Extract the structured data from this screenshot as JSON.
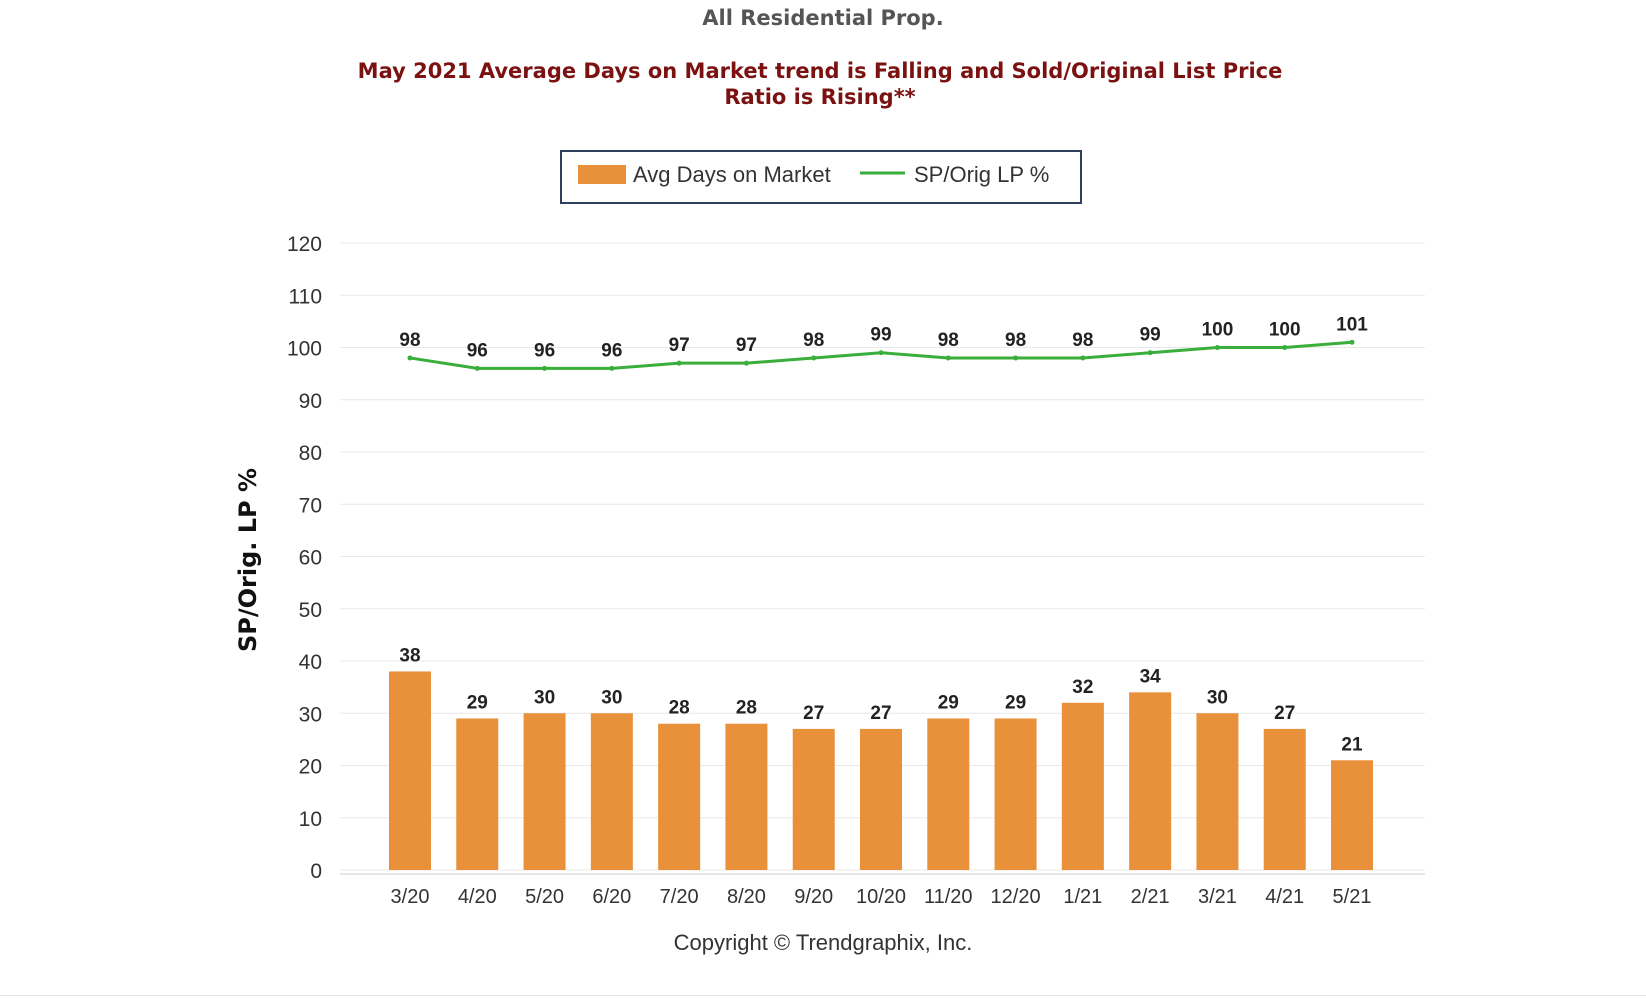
{
  "header": {
    "title": "All Residential Prop.",
    "headline_line1": "May 2021 Average Days on Market trend is Falling and Sold/Original List Price",
    "headline_line2": "Ratio is Rising**"
  },
  "colors": {
    "headline": "#7b1111",
    "title": "#555555",
    "bar": "#e8913a",
    "line": "#3aae3a",
    "grid": "#e8e8e8",
    "legend_border": "#2f3f5f"
  },
  "footer": {
    "copyright": "Copyright © Trendgraphix, Inc."
  },
  "chart_data": {
    "type": "bar",
    "categories": [
      "3/20",
      "4/20",
      "5/20",
      "6/20",
      "7/20",
      "8/20",
      "9/20",
      "10/20",
      "11/20",
      "12/20",
      "1/21",
      "2/21",
      "3/21",
      "4/21",
      "5/21"
    ],
    "series": [
      {
        "name": "Avg Days on Market",
        "type": "bar",
        "color": "#e8913a",
        "values": [
          38,
          29,
          30,
          30,
          28,
          28,
          27,
          27,
          29,
          29,
          32,
          34,
          30,
          27,
          21
        ]
      },
      {
        "name": "SP/Orig LP %",
        "type": "line",
        "color": "#3aae3a",
        "values": [
          98,
          96,
          96,
          96,
          97,
          97,
          98,
          99,
          98,
          98,
          98,
          99,
          100,
          100,
          101
        ]
      }
    ],
    "ylabel": "SP/Orig. LP %",
    "xlabel": "",
    "ylim": [
      0,
      120
    ],
    "yticks": [
      0,
      10,
      20,
      30,
      40,
      50,
      60,
      70,
      80,
      90,
      100,
      110,
      120
    ],
    "grid": true,
    "legend_position": "top-center"
  }
}
